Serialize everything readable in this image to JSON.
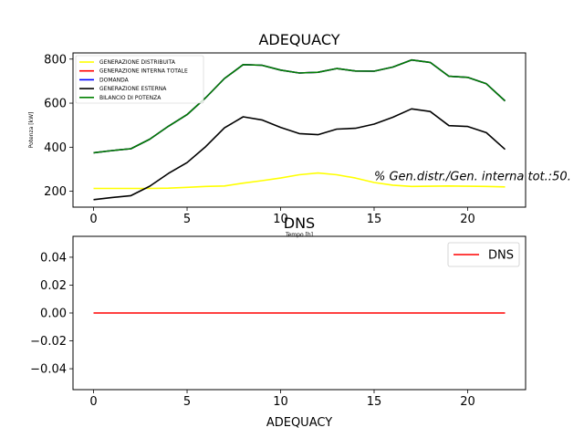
{
  "chart_data": [
    {
      "type": "line",
      "title": "ADEQUACY",
      "xlabel": "Tempo [h]",
      "ylabel": "Potenza [kW]",
      "xlim": [
        -1.1,
        23.1
      ],
      "ylim": [
        128,
        828
      ],
      "xticks": [
        0,
        5,
        10,
        15,
        20
      ],
      "yticks": [
        200,
        400,
        600,
        800
      ],
      "legend_position": "upper-left",
      "annotation": "% Gen.distr./Gen. interna tot.:50.",
      "x": [
        0,
        1,
        2,
        3,
        4,
        5,
        6,
        7,
        8,
        9,
        10,
        11,
        12,
        13,
        14,
        15,
        16,
        17,
        18,
        19,
        20,
        21,
        22
      ],
      "series": [
        {
          "name": "GENERAZIONE DISTRIBUITA",
          "color": "#ffff00",
          "values": [
            213,
            213,
            213,
            213,
            214,
            218,
            222,
            224,
            237,
            248,
            260,
            275,
            283,
            275,
            260,
            240,
            228,
            222,
            223,
            224,
            223,
            222,
            220
          ]
        },
        {
          "name": "GENERAZIONE INTERNA TOTALE",
          "color": "#ff0000",
          "values": [
            375,
            385,
            393,
            436,
            495,
            548,
            625,
            712,
            775,
            772,
            750,
            737,
            740,
            757,
            746,
            745,
            764,
            796,
            785,
            722,
            717,
            688,
            610
          ]
        },
        {
          "name": "DOMANDA",
          "color": "#0000ff",
          "values": [
            375,
            385,
            393,
            436,
            495,
            548,
            625,
            712,
            775,
            772,
            750,
            737,
            740,
            757,
            746,
            745,
            764,
            796,
            785,
            722,
            717,
            688,
            610
          ]
        },
        {
          "name": "GENERAZIONE ESTERNA",
          "color": "#000000",
          "values": [
            162,
            172,
            180,
            223,
            281,
            330,
            403,
            488,
            538,
            524,
            490,
            462,
            457,
            482,
            486,
            505,
            536,
            574,
            562,
            498,
            494,
            466,
            390
          ]
        },
        {
          "name": "BILANCIO DI POTENZA",
          "color": "#008000",
          "values": [
            375,
            385,
            393,
            436,
            495,
            548,
            625,
            712,
            775,
            772,
            750,
            737,
            740,
            757,
            746,
            745,
            764,
            796,
            785,
            722,
            717,
            688,
            610
          ]
        }
      ]
    },
    {
      "type": "line",
      "title": "DNS",
      "xlabel": "ADEQUACY",
      "xlim": [
        -1.1,
        23.1
      ],
      "ylim": [
        -0.055,
        0.055
      ],
      "xticks": [
        0,
        5,
        10,
        15,
        20
      ],
      "yticks": [
        -0.04,
        -0.02,
        0.0,
        0.02,
        0.04
      ],
      "ytick_labels": [
        "−0.04",
        "−0.02",
        "0.00",
        "0.02",
        "0.04"
      ],
      "legend_position": "upper-right",
      "x": [
        0,
        1,
        2,
        3,
        4,
        5,
        6,
        7,
        8,
        9,
        10,
        11,
        12,
        13,
        14,
        15,
        16,
        17,
        18,
        19,
        20,
        21,
        22
      ],
      "series": [
        {
          "name": "DNS",
          "color": "#ff0000",
          "values": [
            0,
            0,
            0,
            0,
            0,
            0,
            0,
            0,
            0,
            0,
            0,
            0,
            0,
            0,
            0,
            0,
            0,
            0,
            0,
            0,
            0,
            0,
            0
          ]
        }
      ]
    }
  ]
}
